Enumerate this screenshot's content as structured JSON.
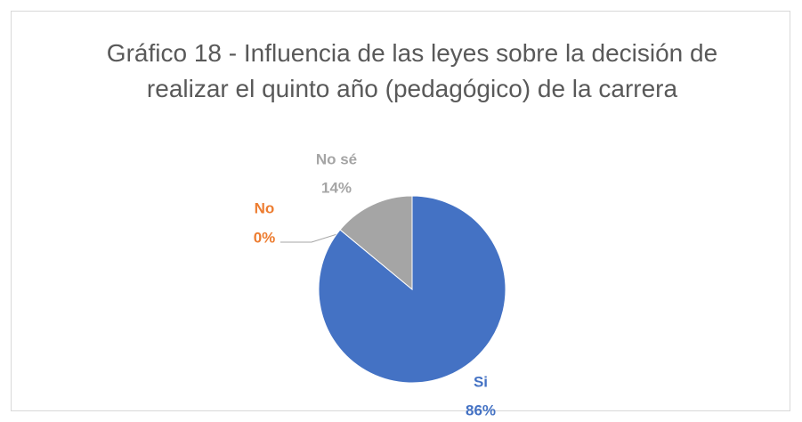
{
  "chart_data": {
    "type": "pie",
    "title": "Gráfico 18 - Influencia de las leyes sobre la decisión de realizar el quinto año (pedagógico) de la carrera",
    "categories": [
      "Si",
      "No",
      "No sé"
    ],
    "values": [
      86,
      0,
      14
    ],
    "value_labels": [
      "86%",
      "0%",
      "14%"
    ],
    "colors": [
      "#4472c4",
      "#ed7d31",
      "#a5a5a5"
    ]
  }
}
